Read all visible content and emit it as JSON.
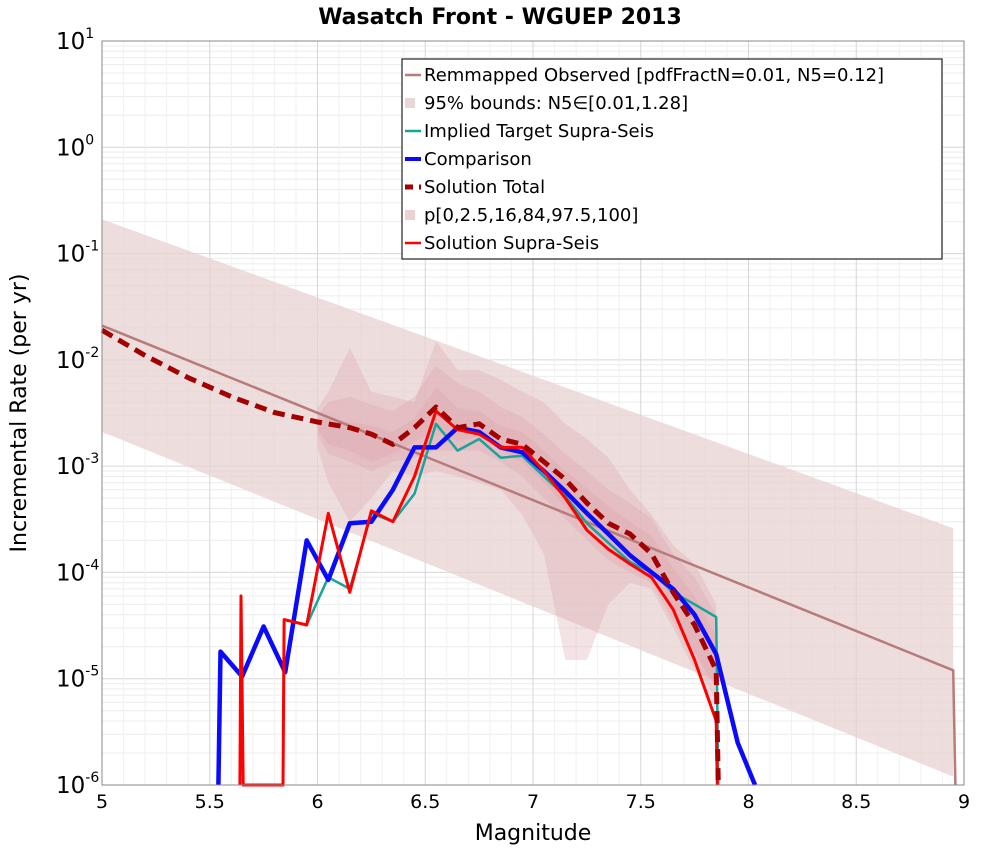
{
  "chart_data": {
    "type": "line",
    "title": "Wasatch Front - WGUEP 2013",
    "xlabel": "Magnitude",
    "ylabel": "Incremental Rate (per yr)",
    "xlim": [
      5,
      9
    ],
    "ylim": [
      1e-06,
      10
    ],
    "yscale": "log",
    "grid": true,
    "legend_position": "top-right",
    "x_ticks": [
      "5",
      "5.5",
      "6",
      "6.5",
      "7",
      "7.5",
      "8",
      "8.5",
      "9"
    ],
    "y_ticks": [
      {
        "base": "10",
        "exp": "-6"
      },
      {
        "base": "10",
        "exp": "-5"
      },
      {
        "base": "10",
        "exp": "-4"
      },
      {
        "base": "10",
        "exp": "-3"
      },
      {
        "base": "10",
        "exp": "-2"
      },
      {
        "base": "10",
        "exp": "-1"
      },
      {
        "base": "10",
        "exp": "0"
      },
      {
        "base": "10",
        "exp": "1"
      }
    ],
    "colors": {
      "remapped": "#b77b7b",
      "bounds": "#e8d2d2",
      "implied": "#1aa39a",
      "comparison": "#0a0aff",
      "solution_total": "#a30000",
      "pfill": "#d9a3a8",
      "solution_supra": "#ff0000"
    },
    "series": [
      {
        "name": "Remmapped Observed [pdfFractN=0.01, N5=0.12]",
        "kind": "line",
        "color_key": "remapped",
        "x": [
          5.0,
          8.95,
          8.96
        ],
        "y": [
          0.021,
          1.2e-05,
          1e-06
        ]
      },
      {
        "name": "95% bounds: N5∈[0.01,1.28]",
        "kind": "band",
        "color_key": "bounds",
        "x": [
          5.0,
          8.95
        ],
        "lower": [
          0.0021,
          1.2e-06
        ],
        "upper": [
          0.21,
          0.00026
        ]
      },
      {
        "name": "Implied Target Supra-Seis",
        "kind": "line",
        "color_key": "implied",
        "x": [
          5.95,
          6.05,
          6.15,
          6.25,
          6.35,
          6.45,
          6.55,
          6.65,
          6.75,
          6.85,
          6.95,
          7.05,
          7.15,
          7.25,
          7.35,
          7.45,
          7.55,
          7.65,
          7.75,
          7.85,
          7.86
        ],
        "y": [
          3.2e-05,
          9e-05,
          7e-05,
          0.00036,
          0.0003,
          0.00055,
          0.0025,
          0.0014,
          0.0018,
          0.0012,
          0.00125,
          0.0008,
          0.00052,
          0.00029,
          0.00019,
          0.000125,
          0.0001,
          6.5e-05,
          5e-05,
          3.8e-05,
          1e-06
        ]
      },
      {
        "name": "Comparison",
        "kind": "line",
        "color_key": "comparison",
        "x": [
          5.54,
          5.55,
          5.65,
          5.75,
          5.85,
          5.95,
          6.05,
          6.15,
          6.25,
          6.35,
          6.45,
          6.55,
          6.65,
          6.75,
          6.85,
          6.95,
          7.05,
          7.15,
          7.25,
          7.35,
          7.45,
          7.55,
          7.65,
          7.75,
          7.85,
          7.95,
          8.03
        ],
        "y": [
          1e-06,
          1.8e-05,
          1.05e-05,
          3.1e-05,
          1.15e-05,
          0.0002,
          8.5e-05,
          0.00029,
          0.0003,
          0.0006,
          0.0015,
          0.0015,
          0.0023,
          0.0021,
          0.0015,
          0.00135,
          0.0009,
          0.00058,
          0.00036,
          0.00023,
          0.000145,
          0.0001,
          7e-05,
          4e-05,
          1.7e-05,
          2.5e-06,
          7e-07
        ]
      },
      {
        "name": "Solution Total",
        "kind": "line",
        "dashed": true,
        "color_key": "solution_total",
        "x": [
          5.0,
          5.2,
          5.4,
          5.6,
          5.8,
          6.0,
          6.15,
          6.25,
          6.35,
          6.45,
          6.55,
          6.65,
          6.75,
          6.85,
          6.95,
          7.05,
          7.15,
          7.25,
          7.35,
          7.45,
          7.55,
          7.65,
          7.75,
          7.85,
          7.86
        ],
        "y": [
          0.019,
          0.011,
          0.0068,
          0.0045,
          0.0032,
          0.0026,
          0.0023,
          0.002,
          0.0016,
          0.0023,
          0.0036,
          0.0023,
          0.0025,
          0.0018,
          0.0016,
          0.0011,
          0.00075,
          0.00045,
          0.00029,
          0.00023,
          0.00015,
          6.5e-05,
          3.2e-05,
          1.2e-05,
          1e-06
        ]
      },
      {
        "name": "p[0,2.5,16,84,97.5,100]",
        "kind": "bands",
        "color_key": "pfill",
        "x": [
          6.0,
          6.05,
          6.15,
          6.25,
          6.35,
          6.45,
          6.55,
          6.65,
          6.75,
          6.85,
          6.95,
          7.05,
          7.15,
          7.25,
          7.35,
          7.45,
          7.55,
          7.65,
          7.75,
          7.85
        ],
        "bands": [
          {
            "lower": [
              0.0015,
              0.0007,
              0.0003,
              0.0005,
              0.0009,
              0.0008,
              0.0009,
              0.0008,
              0.0007,
              0.0006,
              0.00035,
              0.00015,
              1.5e-05,
              1.5e-05,
              5e-05,
              8e-05,
              7e-05,
              3e-05,
              1.2e-05,
              5e-06
            ],
            "upper": [
              0.0035,
              0.005,
              0.013,
              0.005,
              0.0045,
              0.004,
              0.015,
              0.008,
              0.008,
              0.0065,
              0.005,
              0.004,
              0.0025,
              0.0018,
              0.0012,
              0.0006,
              0.00035,
              0.00018,
              0.00012,
              5e-05
            ]
          },
          {
            "lower": [
              0.002,
              0.0013,
              0.0011,
              0.0009,
              0.0011,
              0.0012,
              0.0014,
              0.0014,
              0.0014,
              0.0011,
              0.0008,
              0.0005,
              0.00032,
              0.0002,
              0.00013,
              0.0001,
              8e-05,
              3.5e-05,
              1.5e-05,
              6e-06
            ],
            "upper": [
              0.003,
              0.004,
              0.0045,
              0.0038,
              0.0033,
              0.0045,
              0.0088,
              0.006,
              0.005,
              0.0036,
              0.0029,
              0.002,
              0.0013,
              0.0009,
              0.0006,
              0.00045,
              0.00032,
              0.00015,
              9e-05,
              4e-05
            ]
          },
          {
            "lower": [
              0.0022,
              0.0016,
              0.0014,
              0.0011,
              0.0013,
              0.0017,
              0.0022,
              0.0017,
              0.0019,
              0.0014,
              0.0011,
              0.0007,
              0.00042,
              0.00027,
              0.00018,
              0.00013,
              0.0001,
              4e-05,
              1.8e-05,
              8e-06
            ],
            "upper": [
              0.0028,
              0.0028,
              0.0026,
              0.0024,
              0.0021,
              0.0028,
              0.0055,
              0.0035,
              0.0033,
              0.0024,
              0.0021,
              0.0014,
              0.0009,
              0.00062,
              0.00042,
              0.0003,
              0.00022,
              0.00011,
              6e-05,
              2.5e-05
            ]
          }
        ]
      },
      {
        "name": "Solution Supra-Seis",
        "kind": "line",
        "color_key": "solution_supra",
        "x": [
          5.64,
          5.645,
          5.655,
          5.84,
          5.845,
          5.95,
          6.05,
          6.15,
          6.25,
          6.35,
          6.45,
          6.55,
          6.65,
          6.75,
          6.85,
          6.95,
          7.05,
          7.15,
          7.25,
          7.35,
          7.45,
          7.55,
          7.65,
          7.75,
          7.85,
          7.855
        ],
        "y": [
          1e-06,
          6e-05,
          1e-06,
          1e-06,
          3.6e-05,
          3.2e-05,
          0.00036,
          6.5e-05,
          0.00038,
          0.0003,
          0.0008,
          0.0033,
          0.0022,
          0.002,
          0.0015,
          0.0015,
          0.0009,
          0.0005,
          0.00025,
          0.000165,
          0.00012,
          9e-05,
          4.5e-05,
          1.5e-05,
          4e-06,
          1e-06
        ]
      }
    ]
  }
}
